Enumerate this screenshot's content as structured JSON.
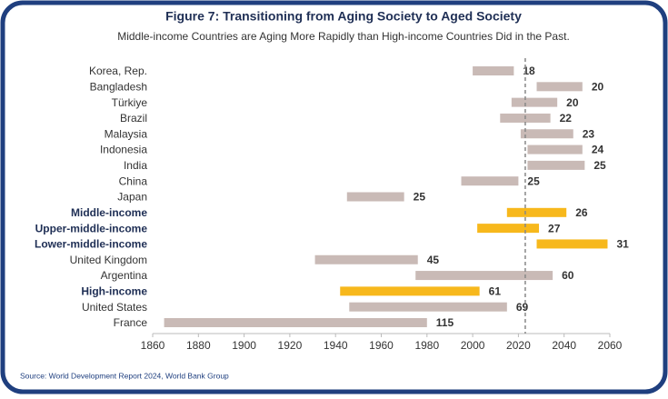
{
  "chart_data": {
    "type": "range-bar",
    "title": "Figure 7:  Transitioning from Aging Society to Aged Society",
    "subtitle": "Middle-income Countries are Aging More Rapidly than High-income Countries Did in the Past.",
    "source": "Source: World Development Report 2024, World Bank Group",
    "categories": [
      "Korea, Rep.",
      "Bangladesh",
      "Türkiye",
      "Brazil",
      "Malaysia",
      "Indonesia",
      "India",
      "China",
      "Japan",
      "Middle-income",
      "Upper-middle-income",
      "Lower-middle-income",
      "United Kingdom",
      "Argentina",
      "High-income",
      "United States",
      "France"
    ],
    "starts": [
      2000,
      2028,
      2017,
      2012,
      2021,
      2024,
      2024,
      1995,
      1945,
      2015,
      2002,
      2028,
      1931,
      1975,
      1942,
      1946,
      1865
    ],
    "values": [
      18,
      20,
      20,
      22,
      23,
      24,
      25,
      25,
      25,
      26,
      27,
      31,
      45,
      60,
      61,
      69,
      115
    ],
    "highlight": [
      false,
      false,
      false,
      false,
      false,
      false,
      false,
      false,
      false,
      true,
      true,
      true,
      false,
      false,
      true,
      false,
      false
    ],
    "colors": {
      "default": "#c9bab6",
      "highlight": "#f7b81c"
    },
    "reference_line": 2023,
    "xlim": [
      1860,
      2060
    ],
    "xticks": [
      1860,
      1880,
      1900,
      1920,
      1940,
      1960,
      1980,
      2000,
      2020,
      2040,
      2060
    ]
  }
}
